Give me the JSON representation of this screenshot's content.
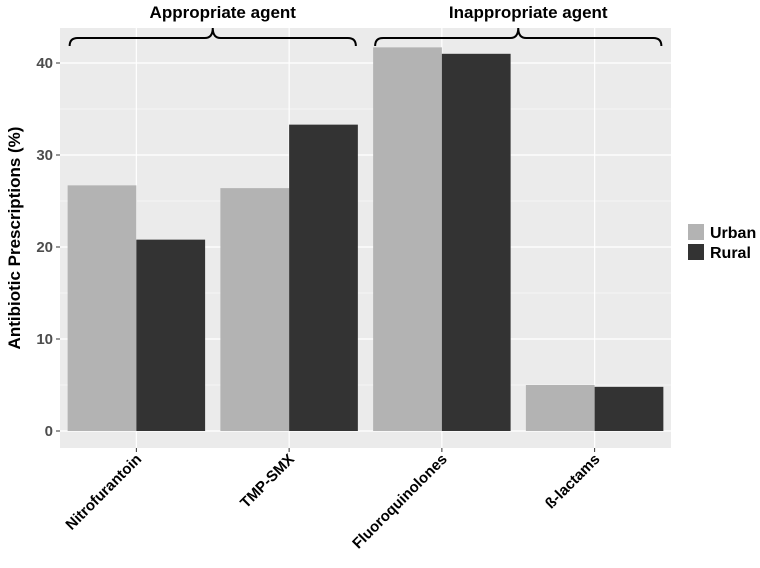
{
  "chart_data": {
    "type": "bar",
    "categories": [
      "Nitrofurantoin",
      "TMP-SMX",
      "Fluoroquinolones",
      "ß-lactams"
    ],
    "series": [
      {
        "name": "Urban",
        "values": [
          26.7,
          26.4,
          41.7,
          5.0
        ],
        "color": "#b3b3b3"
      },
      {
        "name": "Rural",
        "values": [
          20.8,
          33.3,
          41.0,
          4.8
        ],
        "color": "#333333"
      }
    ],
    "ylabel": "Antibiotic Prescriptions (%)",
    "ylim": [
      -2,
      43
    ],
    "yticks": [
      0,
      10,
      20,
      30,
      40
    ],
    "grid": true,
    "legend_position": "right",
    "groups": [
      {
        "label": "Appropriate agent",
        "categories": [
          "Nitrofurantoin",
          "TMP-SMX"
        ]
      },
      {
        "label": "Inappropriate agent",
        "categories": [
          "Fluoroquinolones",
          "ß-lactams"
        ]
      }
    ],
    "colors": {
      "panel": "#ebebeb",
      "grid": "#ffffff"
    }
  }
}
